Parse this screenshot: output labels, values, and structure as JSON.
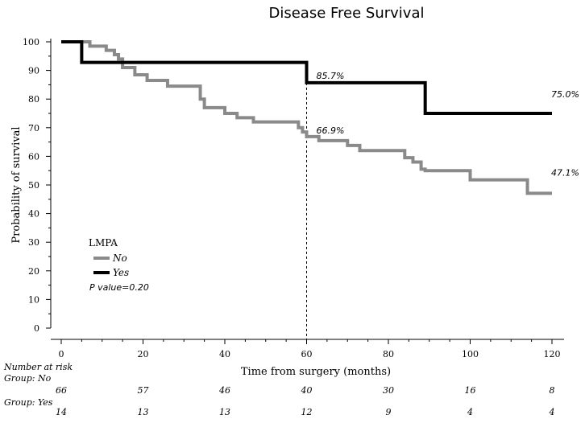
{
  "chart_data": {
    "type": "line",
    "step": true,
    "title": "Disease Free Survival",
    "xlabel": "Time from surgery (months)",
    "ylabel": "Probability of survival",
    "xlim": [
      0,
      120
    ],
    "ylim": [
      0,
      100
    ],
    "xticks": [
      "0",
      "20",
      "40",
      "60",
      "80",
      "100",
      "120"
    ],
    "yticks": [
      "0",
      "10",
      "20",
      "30",
      "40",
      "50",
      "60",
      "70",
      "80",
      "90",
      "100"
    ],
    "reference_line_x": 60,
    "legend": {
      "title": "LMPA",
      "position": "lower-left",
      "entries": [
        {
          "label": "No",
          "color": "#8a8a8a"
        },
        {
          "label": "Yes",
          "color": "#000000"
        }
      ]
    },
    "p_value_text": "P value=0.20",
    "series": [
      {
        "name": "No",
        "color": "#8a8a8a",
        "x": [
          0,
          5,
          7,
          11,
          13,
          14,
          15,
          18,
          21,
          26,
          34,
          34,
          35,
          40,
          43,
          47,
          58,
          59,
          60,
          63,
          70,
          73,
          79,
          84,
          86,
          88,
          89,
          100,
          105,
          112,
          114,
          120
        ],
        "y": [
          100,
          100,
          98.5,
          97,
          95.5,
          94,
          91,
          88.5,
          86.5,
          84.5,
          83,
          80,
          77,
          75,
          73.5,
          72,
          70,
          68.5,
          66.9,
          65.5,
          63.8,
          62,
          62,
          59.5,
          58,
          55.5,
          55,
          51.8,
          51.8,
          51.8,
          47.1,
          47.1
        ]
      },
      {
        "name": "Yes",
        "color": "#000000",
        "x": [
          0,
          5,
          60,
          89,
          120
        ],
        "y": [
          100,
          92.8,
          85.7,
          75.0,
          75.0
        ]
      }
    ],
    "annotations": [
      {
        "text": "85.7%",
        "x": 60,
        "y": 85.7
      },
      {
        "text": "66.9%",
        "x": 60,
        "y": 66.9
      },
      {
        "text": "75.0%",
        "x": 120,
        "y": 75.0
      },
      {
        "text": "47.1%",
        "x": 120,
        "y": 47.1
      }
    ],
    "risk_table": {
      "header": "Number at risk",
      "groups": [
        {
          "label": "Group: No",
          "values": [
            "66",
            "57",
            "46",
            "40",
            "30",
            "16",
            "8"
          ]
        },
        {
          "label": "Group: Yes",
          "values": [
            "14",
            "13",
            "13",
            "12",
            "9",
            "4",
            "4"
          ]
        }
      ]
    }
  }
}
